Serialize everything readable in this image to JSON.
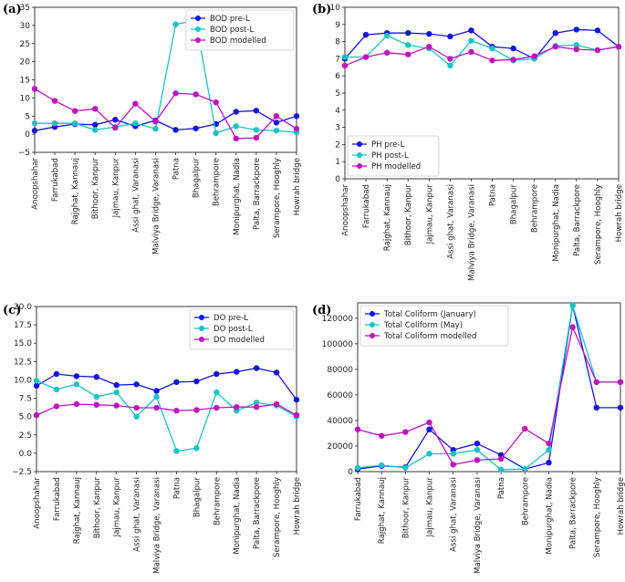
{
  "chart_data": [
    {
      "panel": "(a)",
      "type": "line",
      "ylim": [
        -5,
        35
      ],
      "yticks": [
        "−5",
        "0",
        "5",
        "10",
        "15",
        "20",
        "25",
        "30",
        "35"
      ],
      "categories": [
        "Anoopshahar",
        "Farrukabad",
        "Rajghat, Kannauj",
        "Bithoor, Kanpur",
        "Jajmau, Kanpur",
        "Assi ghat, Varanasi",
        "Malviya Bridge, Varanasi",
        "Patna",
        "Bhagalpur",
        "Behrampore",
        "Monipurghat, Nadia",
        "Palta, Barrackpore",
        "Serampore, Hooghly",
        "Howrah bridge"
      ],
      "legend_position": "top-right",
      "series": [
        {
          "name": "BOD pre-L",
          "color": "#1515e0",
          "values": [
            1.0,
            2.0,
            2.8,
            2.6,
            4.0,
            2.2,
            3.8,
            1.2,
            1.6,
            2.8,
            6.2,
            6.5,
            3.2,
            5.0
          ]
        },
        {
          "name": "BOD post-L",
          "color": "#19c4c4",
          "values": [
            3.0,
            3.0,
            3.0,
            1.2,
            2.0,
            3.0,
            1.5,
            30.3,
            31.4,
            0.3,
            2.2,
            1.2,
            1.0,
            0.5
          ]
        },
        {
          "name": "BOD modelled",
          "color": "#c012c0",
          "values": [
            12.5,
            9.2,
            6.4,
            7.0,
            1.8,
            8.4,
            3.5,
            11.3,
            11.0,
            8.8,
            -1.2,
            -1.0,
            5.0,
            1.5
          ]
        }
      ]
    },
    {
      "panel": "(b)",
      "type": "line",
      "ylim": [
        0,
        10
      ],
      "yticks": [
        "0",
        "1",
        "2",
        "3",
        "4",
        "5",
        "6",
        "7",
        "8",
        "9",
        "10"
      ],
      "categories": [
        "Anoopshahar",
        "Farrukabad",
        "Rajghat, Kannauj",
        "Bithoor, Kanpur",
        "Jajmau, Kanpur",
        "Assi ghat, Varanasi",
        "Malviya Bridge, Varanasi",
        "Patna",
        "Bhagalpur",
        "Behrampore",
        "Monipurghat, Nadia",
        "Palta, Barrackpore",
        "Serampore, Hooghly",
        "Howrah bridge"
      ],
      "legend_position": "bottom-left",
      "series": [
        {
          "name": "PH pre-L",
          "color": "#1515e0",
          "values": [
            7.0,
            8.4,
            8.5,
            8.5,
            8.45,
            8.3,
            8.65,
            7.7,
            7.6,
            7.0,
            8.5,
            8.7,
            8.65,
            7.7
          ]
        },
        {
          "name": "PH post-L",
          "color": "#19c4c4",
          "values": [
            7.1,
            7.1,
            8.35,
            7.8,
            7.6,
            6.6,
            8.05,
            7.6,
            6.9,
            7.0,
            7.75,
            7.8,
            7.5,
            7.7
          ]
        },
        {
          "name": "PH modelled",
          "color": "#c012c0",
          "values": [
            6.6,
            7.1,
            7.35,
            7.25,
            7.7,
            7.0,
            7.4,
            6.9,
            6.95,
            7.15,
            7.7,
            7.55,
            7.5,
            7.7
          ]
        }
      ]
    },
    {
      "panel": "(c)",
      "type": "line",
      "ylim": [
        -2.5,
        20
      ],
      "yticks": [
        "−2.5",
        "0.0",
        "2.5",
        "5.0",
        "7.5",
        "10.0",
        "12.5",
        "15.0",
        "17.5",
        "20.0"
      ],
      "categories": [
        "Anoopshahar",
        "Farrukabad",
        "Rajghat, Kannauj",
        "Bithoor, Kanpur",
        "Jajmau, Kanpur",
        "Assi ghat, Varanasi",
        "Malviya Bridge, Varanasi",
        "Patna",
        "Bhagalpur",
        "Behrampore",
        "Monipurghat, Nadia",
        "Palta, Barrackpore",
        "Serampore, Hooghly",
        "Howrah bridge"
      ],
      "legend_position": "top-right",
      "series": [
        {
          "name": "DO pre-L",
          "color": "#1515e0",
          "values": [
            9.2,
            10.8,
            10.5,
            10.4,
            9.3,
            9.4,
            8.5,
            9.7,
            9.8,
            10.8,
            11.1,
            11.6,
            11.0,
            7.3
          ]
        },
        {
          "name": "DO post-L",
          "color": "#19c4c4",
          "values": [
            9.9,
            8.7,
            9.4,
            7.7,
            8.3,
            5.0,
            7.7,
            0.3,
            0.7,
            8.3,
            5.8,
            6.9,
            6.5,
            5.0
          ]
        },
        {
          "name": "DO modelled",
          "color": "#c012c0",
          "values": [
            5.2,
            6.4,
            6.7,
            6.6,
            6.5,
            6.2,
            6.2,
            5.8,
            5.9,
            6.2,
            6.3,
            6.3,
            6.7,
            5.2
          ]
        }
      ]
    },
    {
      "panel": "(d)",
      "type": "line",
      "ylim": [
        0,
        132000
      ],
      "yticks": [
        "0",
        "20000",
        "40000",
        "60000",
        "80000",
        "100000",
        "120000"
      ],
      "ytick_values": [
        0,
        20000,
        40000,
        60000,
        80000,
        100000,
        120000
      ],
      "categories": [
        "Farrukabad",
        "Rajghat, Kannauj",
        "Bithoor, Kanpur",
        "Jajmau, Kanpur",
        "Assi ghat, Varanasi",
        "Malviya Bridge, Varanasi",
        "Patna",
        "Behrampore",
        "Monipurghat, Nadia",
        "Palta, Barrackpore",
        "Serampore, Hooghly",
        "Howrah bridge"
      ],
      "legend_position": "top-left",
      "series": [
        {
          "name": "Total Coliform (January)",
          "color": "#1515e0",
          "values": [
            2000,
            4500,
            3500,
            33000,
            17000,
            22000,
            13000,
            2000,
            7000,
            130000,
            50000,
            50000
          ]
        },
        {
          "name": "Total Coliform (May)",
          "color": "#19c4c4",
          "values": [
            3000,
            5000,
            3000,
            14000,
            14000,
            17000,
            1500,
            2000,
            17000,
            130000,
            70000,
            70000
          ]
        },
        {
          "name": "Total Coliform modelled",
          "color": "#c012c0",
          "values": [
            33000,
            28000,
            31000,
            38500,
            5500,
            9000,
            10000,
            33500,
            22000,
            113000,
            70000,
            70000
          ]
        }
      ]
    }
  ]
}
